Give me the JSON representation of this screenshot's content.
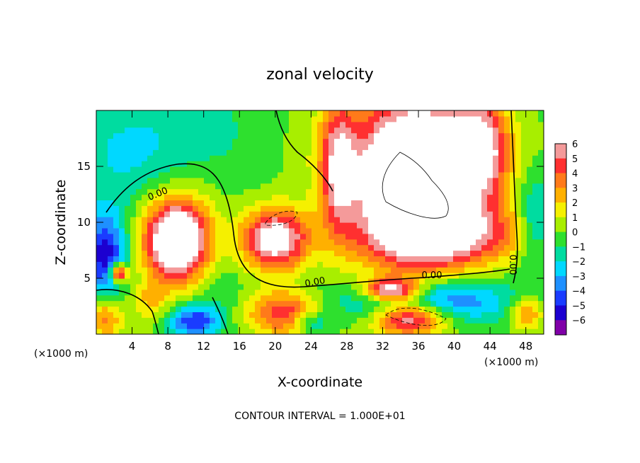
{
  "chart_data": {
    "type": "heatmap",
    "title": "zonal velocity",
    "xlabel": "X-coordinate",
    "ylabel": "Z-coordinate",
    "x_unit": "(×1000 m)",
    "x_unit_right": "(×1000 m)",
    "footer": "CONTOUR INTERVAL = 1.000E+01",
    "xlim": [
      0,
      50
    ],
    "ylim": [
      0,
      20
    ],
    "x_ticks": [
      4,
      8,
      12,
      16,
      20,
      24,
      28,
      32,
      36,
      40,
      44,
      48
    ],
    "y_ticks": [
      5,
      10,
      15
    ],
    "colorbar": {
      "levels": [
        6,
        5,
        4,
        3,
        2,
        1,
        0,
        -1,
        -2,
        -3,
        -4,
        -5,
        -6
      ],
      "labels": [
        "6",
        "5",
        "4",
        "3",
        "2",
        "1",
        "0",
        "−1",
        "−2",
        "−3",
        "−4",
        "−5",
        "−6"
      ],
      "colors": [
        "#f49a9a",
        "#ff3030",
        "#ff7a1a",
        "#ffb000",
        "#f5f000",
        "#a8ee00",
        "#2ee02e",
        "#00dca0",
        "#00d8ff",
        "#1e90ff",
        "#1a3cff",
        "#1c00d0",
        "#8000a8"
      ]
    },
    "contour_labels": [
      {
        "text": "0.00",
        "x": 7.0,
        "y": 12.3,
        "angle": -22
      },
      {
        "text": "0.00",
        "x": 24.5,
        "y": 4.4,
        "angle": -10
      },
      {
        "text": "0.00",
        "x": 37.5,
        "y": 5.0,
        "angle": 0
      },
      {
        "text": "0.00",
        "x": 46.2,
        "y": 6.2,
        "angle": 90
      }
    ],
    "field_blobs": [
      {
        "x": 25,
        "y": 10,
        "rx": 30,
        "ry": 14,
        "v": 1.0
      },
      {
        "x": 3,
        "y": 16,
        "rx": 6,
        "ry": 5,
        "v": -2.0
      },
      {
        "x": 12,
        "y": 18,
        "rx": 7,
        "ry": 4,
        "v": -1.5
      },
      {
        "x": 1,
        "y": 7,
        "rx": 2.5,
        "ry": 4,
        "v": -5.5
      },
      {
        "x": 2.5,
        "y": 5.5,
        "rx": 1,
        "ry": 0.8,
        "v": 8
      },
      {
        "x": 9,
        "y": 8.5,
        "rx": 3.5,
        "ry": 3.5,
        "v": 10
      },
      {
        "x": 6,
        "y": 3,
        "rx": 2,
        "ry": 2,
        "v": 2
      },
      {
        "x": 11,
        "y": 1.2,
        "rx": 3,
        "ry": 1.5,
        "v": -5
      },
      {
        "x": 20,
        "y": 8.5,
        "rx": 4,
        "ry": 3,
        "v": 10
      },
      {
        "x": 20,
        "y": 8.5,
        "rx": 6,
        "ry": 4.5,
        "v": -3
      },
      {
        "x": 21,
        "y": 2,
        "rx": 4,
        "ry": 2,
        "v": 5
      },
      {
        "x": 24,
        "y": 1,
        "rx": 2,
        "ry": 1,
        "v": -3
      },
      {
        "x": 27,
        "y": 15,
        "rx": 2,
        "ry": 6,
        "v": 5
      },
      {
        "x": 36,
        "y": 14,
        "rx": 7,
        "ry": 7,
        "v": 12
      },
      {
        "x": 40,
        "y": 9,
        "rx": 9,
        "ry": 2.5,
        "v": 4
      },
      {
        "x": 37,
        "y": 3,
        "rx": 10,
        "ry": 2,
        "v": -5
      },
      {
        "x": 33,
        "y": 4,
        "rx": 3,
        "ry": 1,
        "v": 8
      },
      {
        "x": 35,
        "y": 1.5,
        "rx": 4,
        "ry": 1.5,
        "v": 7
      },
      {
        "x": 43,
        "y": 17,
        "rx": 3,
        "ry": 4,
        "v": 5
      },
      {
        "x": 49,
        "y": 10,
        "rx": 2,
        "ry": 4,
        "v": -3
      },
      {
        "x": 48,
        "y": 2,
        "rx": 2,
        "ry": 1.5,
        "v": 4
      },
      {
        "x": 1,
        "y": 1.5,
        "rx": 2,
        "ry": 2,
        "v": 4
      },
      {
        "x": 14,
        "y": 4,
        "rx": 2,
        "ry": 2,
        "v": -1
      }
    ]
  }
}
